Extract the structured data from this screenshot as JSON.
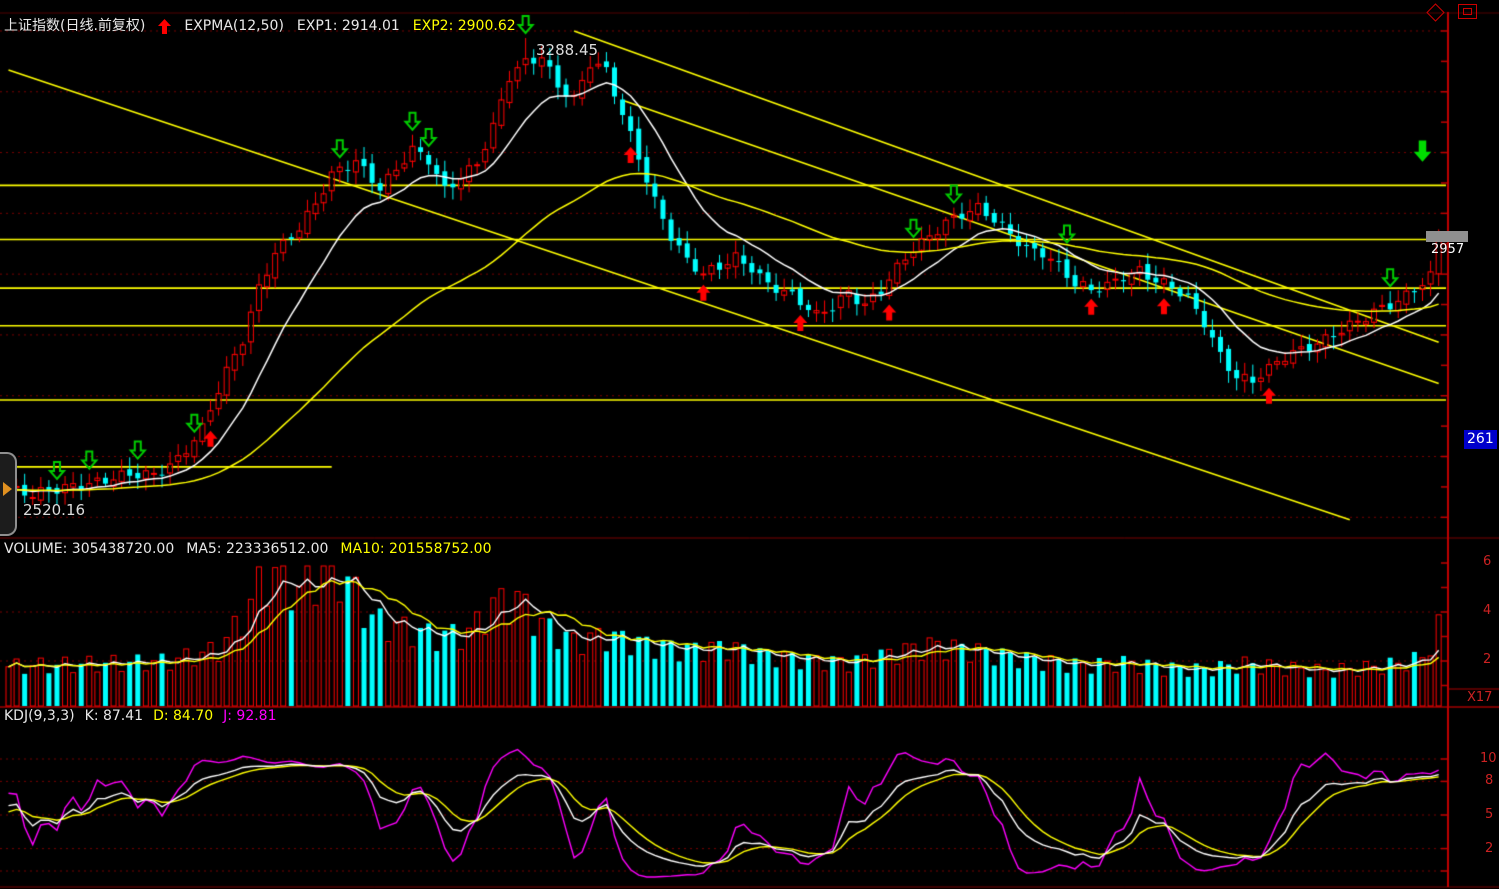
{
  "main_chart": {
    "title": "上证指数(日线.前复权)",
    "indicator": "EXPMA(12,50)",
    "exp1": "EXP1: 2914.01",
    "exp2": "EXP2: 2900.62",
    "peak_label": "3288.45",
    "low_label": "2520.16",
    "low_cursor": "←",
    "price_tag": "2957",
    "event_tag": "261"
  },
  "volume_pane": {
    "header_volume": "VOLUME: 305438720.00",
    "header_ma5": "MA5: 223336512.00",
    "header_ma10": "MA10: 201558752.00",
    "axis": [
      "6",
      "4",
      "2"
    ],
    "multiplier": "X17"
  },
  "kdj_pane": {
    "header_name": "KDJ(9,3,3)",
    "header_k": "K: 87.41",
    "header_d": "D: 84.70",
    "header_j": "J: 92.81",
    "axis": [
      "10",
      "8",
      "5",
      "2"
    ]
  },
  "icons": {
    "header_trend_arrow": "up-arrow",
    "pane_diamond": "◇",
    "pane_window": "▣",
    "panel_handle_arrow": "►"
  },
  "theme": {
    "background": "#000000",
    "up": "#ff0000",
    "down": "#00ffff",
    "ema_fast": "#ffffff",
    "ema_slow": "#ffff00",
    "trendline": "#ffff00",
    "grid": "#7a0000",
    "axis": "#c00000",
    "marker_green": "#00cc00",
    "marker_red": "#ff0000",
    "j_line": "#ff00ff",
    "tag_blue": "#0000cc",
    "tag_gray": "#8f8f8f",
    "toolbar": "#d6d3ce"
  },
  "chart_data": [
    {
      "type": "candlestick",
      "title": "上证指数 日线 前复权",
      "indicator": {
        "name": "EXPMA",
        "params": [
          12,
          50
        ],
        "exp1": 2914.01,
        "exp2": 2900.62
      },
      "x_bars": 178,
      "ylim": [
        2469,
        3327
      ],
      "grid_step": 100,
      "tick_step": 50,
      "annotations": {
        "peak": {
          "bar": 64,
          "price": 3288.45
        },
        "low": {
          "bar": 3,
          "price": 2520.16
        },
        "last_price": 2957
      },
      "close_keyframes": [
        [
          0,
          2545
        ],
        [
          3,
          2532
        ],
        [
          8,
          2556
        ],
        [
          13,
          2562
        ],
        [
          18,
          2570
        ],
        [
          21,
          2600
        ],
        [
          24,
          2645
        ],
        [
          27,
          2735
        ],
        [
          29,
          2790
        ],
        [
          31,
          2880
        ],
        [
          33,
          2940
        ],
        [
          36,
          2975
        ],
        [
          38,
          3010
        ],
        [
          40,
          3060
        ],
        [
          43,
          3090
        ],
        [
          46,
          3045
        ],
        [
          48,
          3070
        ],
        [
          50,
          3100
        ],
        [
          52,
          3085
        ],
        [
          54,
          3040
        ],
        [
          56,
          3065
        ],
        [
          58,
          3085
        ],
        [
          60,
          3140
        ],
        [
          62,
          3220
        ],
        [
          64,
          3245
        ],
        [
          66,
          3260
        ],
        [
          68,
          3215
        ],
        [
          70,
          3190
        ],
        [
          72,
          3245
        ],
        [
          74,
          3230
        ],
        [
          76,
          3160
        ],
        [
          78,
          3095
        ],
        [
          80,
          3025
        ],
        [
          82,
          2965
        ],
        [
          84,
          2920
        ],
        [
          86,
          2895
        ],
        [
          88,
          2910
        ],
        [
          90,
          2930
        ],
        [
          92,
          2915
        ],
        [
          94,
          2885
        ],
        [
          97,
          2860
        ],
        [
          100,
          2830
        ],
        [
          102,
          2850
        ],
        [
          104,
          2875
        ],
        [
          106,
          2850
        ],
        [
          108,
          2870
        ],
        [
          110,
          2905
        ],
        [
          112,
          2940
        ],
        [
          114,
          2965
        ],
        [
          116,
          2990
        ],
        [
          118,
          3000
        ],
        [
          120,
          3005
        ],
        [
          122,
          2985
        ],
        [
          124,
          2965
        ],
        [
          126,
          2945
        ],
        [
          128,
          2940
        ],
        [
          130,
          2915
        ],
        [
          132,
          2880
        ],
        [
          134,
          2870
        ],
        [
          136,
          2880
        ],
        [
          138,
          2900
        ],
        [
          140,
          2910
        ],
        [
          142,
          2890
        ],
        [
          144,
          2875
        ],
        [
          146,
          2855
        ],
        [
          148,
          2820
        ],
        [
          150,
          2770
        ],
        [
          152,
          2735
        ],
        [
          154,
          2725
        ],
        [
          156,
          2740
        ],
        [
          158,
          2760
        ],
        [
          160,
          2775
        ],
        [
          162,
          2790
        ],
        [
          164,
          2805
        ],
        [
          166,
          2815
        ],
        [
          168,
          2825
        ],
        [
          170,
          2840
        ],
        [
          172,
          2855
        ],
        [
          174,
          2880
        ],
        [
          176,
          2900
        ],
        [
          177,
          2957
        ]
      ],
      "horizontal_lines": [
        3046,
        2957,
        2877,
        2815,
        2693
      ],
      "horizontal_segment": {
        "price": 2583,
        "from_bar": 0,
        "to_bar": 40
      },
      "trendlines": [
        {
          "from": [
            0,
            3236
          ],
          "to": [
            166,
            2496
          ]
        },
        {
          "from": [
            70,
            3300
          ],
          "to": [
            177,
            2788
          ]
        },
        {
          "from": [
            76,
            3186
          ],
          "to": [
            177,
            2720
          ]
        }
      ],
      "markers": {
        "green_down_bars": [
          6,
          10,
          16,
          23,
          41,
          50,
          52,
          64,
          112,
          117,
          131,
          171
        ],
        "red_up_bars": [
          25,
          77,
          86,
          98,
          109,
          134,
          143,
          156
        ],
        "signal_down": {
          "bar": 175,
          "price": 3085
        }
      }
    },
    {
      "type": "bar",
      "name": "VOLUME",
      "values": {
        "volume": 305438720.0,
        "ma5": 223336512.0,
        "ma10": 201558752.0
      },
      "axis_ticks": [
        6,
        4,
        2
      ],
      "multiplier_label": "X17",
      "height_keyframes": [
        [
          0,
          0.28
        ],
        [
          10,
          0.3
        ],
        [
          20,
          0.32
        ],
        [
          26,
          0.4
        ],
        [
          29,
          0.62
        ],
        [
          31,
          0.85
        ],
        [
          33,
          0.95
        ],
        [
          36,
          0.82
        ],
        [
          40,
          1.0
        ],
        [
          42,
          0.88
        ],
        [
          45,
          0.62
        ],
        [
          49,
          0.55
        ],
        [
          53,
          0.5
        ],
        [
          57,
          0.52
        ],
        [
          60,
          0.72
        ],
        [
          63,
          0.76
        ],
        [
          66,
          0.58
        ],
        [
          70,
          0.46
        ],
        [
          74,
          0.5
        ],
        [
          79,
          0.44
        ],
        [
          84,
          0.4
        ],
        [
          89,
          0.42
        ],
        [
          94,
          0.36
        ],
        [
          99,
          0.33
        ],
        [
          104,
          0.31
        ],
        [
          109,
          0.37
        ],
        [
          114,
          0.43
        ],
        [
          118,
          0.41
        ],
        [
          123,
          0.36
        ],
        [
          128,
          0.32
        ],
        [
          133,
          0.29
        ],
        [
          138,
          0.31
        ],
        [
          143,
          0.27
        ],
        [
          148,
          0.26
        ],
        [
          153,
          0.3
        ],
        [
          158,
          0.27
        ],
        [
          163,
          0.25
        ],
        [
          168,
          0.27
        ],
        [
          172,
          0.3
        ],
        [
          175,
          0.34
        ],
        [
          177,
          0.55
        ]
      ]
    },
    {
      "type": "line",
      "name": "KDJ",
      "params": [
        9,
        3,
        3
      ],
      "series": [
        {
          "name": "K",
          "value": 87.41,
          "color": "#ffffff"
        },
        {
          "name": "D",
          "value": 84.7,
          "color": "#ffff00"
        },
        {
          "name": "J",
          "value": 92.81,
          "color": "#ff00ff"
        }
      ],
      "ylim": [
        0,
        100
      ],
      "grid_levels": [
        100,
        80,
        50,
        20,
        0
      ]
    }
  ]
}
